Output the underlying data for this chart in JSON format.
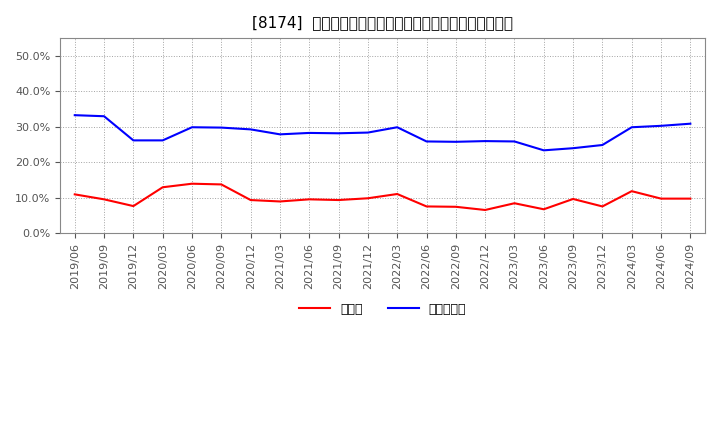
{
  "title": "[8174]  現預金、有利子負債の総資産に対する比率の推移",
  "x_labels": [
    "2019/06",
    "2019/09",
    "2019/12",
    "2020/03",
    "2020/06",
    "2020/09",
    "2020/12",
    "2021/03",
    "2021/06",
    "2021/09",
    "2021/12",
    "2022/03",
    "2022/06",
    "2022/09",
    "2022/12",
    "2023/03",
    "2023/06",
    "2023/09",
    "2023/12",
    "2024/03",
    "2024/06",
    "2024/09"
  ],
  "cash": [
    0.11,
    0.096,
    0.077,
    0.13,
    0.14,
    0.138,
    0.094,
    0.09,
    0.096,
    0.094,
    0.099,
    0.111,
    0.076,
    0.075,
    0.066,
    0.085,
    0.068,
    0.097,
    0.076,
    0.119,
    0.098,
    0.098
  ],
  "debt": [
    0.333,
    0.33,
    0.262,
    0.262,
    0.299,
    0.298,
    0.293,
    0.279,
    0.283,
    0.282,
    0.284,
    0.299,
    0.259,
    0.258,
    0.26,
    0.259,
    0.234,
    0.24,
    0.249,
    0.299,
    0.303,
    0.309
  ],
  "cash_color": "#FF0000",
  "debt_color": "#0000FF",
  "bg_color": "#FFFFFF",
  "plot_bg_color": "#FFFFFF",
  "grid_color": "#999999",
  "title_fontsize": 11,
  "tick_fontsize": 8,
  "legend_label_cash": "現預金",
  "legend_label_debt": "有利子負債",
  "ylim": [
    0.0,
    0.55
  ],
  "yticks": [
    0.0,
    0.1,
    0.2,
    0.3,
    0.4,
    0.5
  ]
}
